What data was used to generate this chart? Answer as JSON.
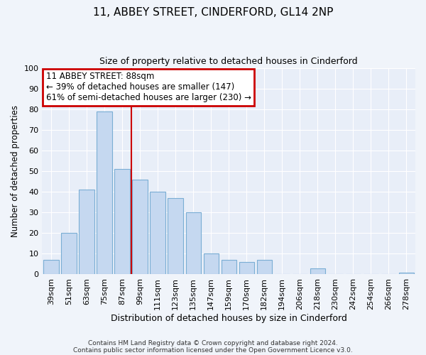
{
  "title": "11, ABBEY STREET, CINDERFORD, GL14 2NP",
  "subtitle": "Size of property relative to detached houses in Cinderford",
  "xlabel": "Distribution of detached houses by size in Cinderford",
  "ylabel": "Number of detached properties",
  "bar_labels": [
    "39sqm",
    "51sqm",
    "63sqm",
    "75sqm",
    "87sqm",
    "99sqm",
    "111sqm",
    "123sqm",
    "135sqm",
    "147sqm",
    "159sqm",
    "170sqm",
    "182sqm",
    "194sqm",
    "206sqm",
    "218sqm",
    "230sqm",
    "242sqm",
    "254sqm",
    "266sqm",
    "278sqm"
  ],
  "bar_values": [
    7,
    20,
    41,
    79,
    51,
    46,
    40,
    37,
    30,
    10,
    7,
    6,
    7,
    0,
    0,
    3,
    0,
    0,
    0,
    0,
    1
  ],
  "bar_color": "#c5d8f0",
  "bar_edge_color": "#7aaed4",
  "vline_color": "#cc0000",
  "annotation_title": "11 ABBEY STREET: 88sqm",
  "annotation_line1": "← 39% of detached houses are smaller (147)",
  "annotation_line2": "61% of semi-detached houses are larger (230) →",
  "annotation_box_color": "#cc0000",
  "ylim": [
    0,
    100
  ],
  "footer1": "Contains HM Land Registry data © Crown copyright and database right 2024.",
  "footer2": "Contains public sector information licensed under the Open Government Licence v3.0.",
  "background_color": "#f0f4fa",
  "plot_background": "#e8eef8"
}
